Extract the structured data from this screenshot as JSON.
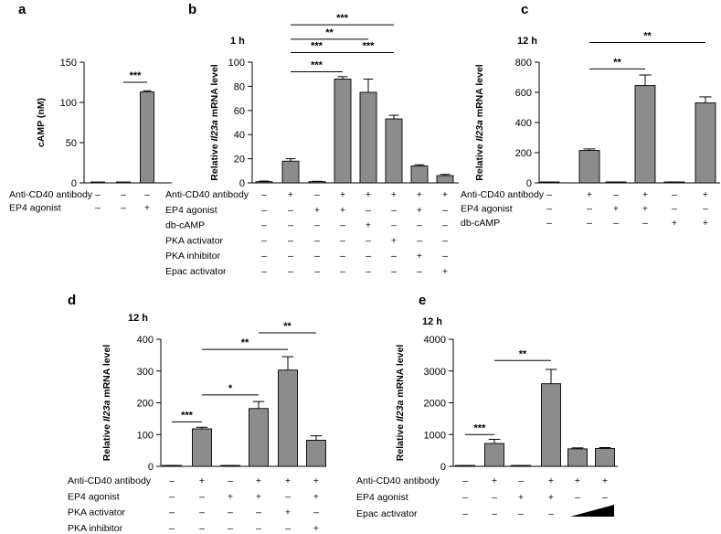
{
  "chart_data": [
    {
      "panel": "a",
      "type": "bar",
      "time_label": "",
      "ylabel": "cAMP (nM)",
      "ylim": [
        0,
        150
      ],
      "yticks": [
        0,
        50,
        100,
        150
      ],
      "values": [
        1,
        1,
        113
      ],
      "errors": [
        0,
        0,
        1.5
      ],
      "conditions": [
        {
          "label": "Anti-CD40 antibody",
          "signs": [
            "–",
            "–",
            "–"
          ]
        },
        {
          "label": "EP4 agonist",
          "signs": [
            "–",
            "–",
            "+"
          ]
        }
      ],
      "significance": [
        {
          "from": 1,
          "to": 2,
          "label": "***",
          "level": 125
        }
      ]
    },
    {
      "panel": "b",
      "type": "bar",
      "time_label": "1 h",
      "ylabel_prefix": "Relative ",
      "ylabel_gene": "Il23a",
      "ylabel_suffix": " mRNA level",
      "ylim": [
        0,
        100
      ],
      "yticks": [
        0,
        20,
        40,
        60,
        80,
        100
      ],
      "values": [
        1,
        18,
        1,
        86,
        75,
        53,
        14,
        6
      ],
      "errors": [
        0.5,
        2,
        0.3,
        2,
        11,
        3,
        1,
        1
      ],
      "conditions": [
        {
          "label": "Anti-CD40 antibody",
          "signs": [
            "–",
            "+",
            "–",
            "+",
            "+",
            "+",
            "+",
            "+"
          ]
        },
        {
          "label": "EP4 agonist",
          "signs": [
            "–",
            "–",
            "+",
            "+",
            "–",
            "–",
            "+",
            "–"
          ]
        },
        {
          "label": "db-cAMP",
          "signs": [
            "–",
            "–",
            "–",
            "–",
            "+",
            "–",
            "–",
            "–"
          ]
        },
        {
          "label": "PKA activator",
          "signs": [
            "–",
            "–",
            "–",
            "–",
            "–",
            "+",
            "–",
            "–"
          ]
        },
        {
          "label": "PKA inhibitor",
          "signs": [
            "–",
            "–",
            "–",
            "–",
            "–",
            "–",
            "+",
            "–"
          ]
        },
        {
          "label": "Epac activator",
          "signs": [
            "–",
            "–",
            "–",
            "–",
            "–",
            "–",
            "–",
            "+"
          ]
        }
      ],
      "significance": [
        {
          "from": 1,
          "to": 3,
          "label": "***",
          "level": 92
        },
        {
          "from": 1,
          "to": 3,
          "label": "***",
          "level": 108
        },
        {
          "from": 3,
          "to": 5,
          "label": "***",
          "level": 108
        },
        {
          "from": 1,
          "to": 4,
          "label": "**",
          "level": 119
        },
        {
          "from": 1,
          "to": 5,
          "label": "***",
          "level": 131
        }
      ]
    },
    {
      "panel": "c",
      "type": "bar",
      "time_label": "12 h",
      "ylabel_prefix": "Relative ",
      "ylabel_gene": "Il23a",
      "ylabel_suffix": " mRNA level",
      "ylim": [
        0,
        800
      ],
      "yticks": [
        0,
        200,
        400,
        600,
        800
      ],
      "values": [
        3,
        215,
        5,
        645,
        5,
        530
      ],
      "errors": [
        1,
        10,
        1,
        70,
        1,
        40
      ],
      "conditions": [
        {
          "label": "Anti-CD40 antibody",
          "signs": [
            "–",
            "+",
            "–",
            "+",
            "–",
            "+"
          ]
        },
        {
          "label": "EP4 agonist",
          "signs": [
            "–",
            "–",
            "+",
            "+",
            "–",
            "–"
          ]
        },
        {
          "label": "db-cAMP",
          "signs": [
            "–",
            "–",
            "–",
            "–",
            "+",
            "+"
          ]
        }
      ],
      "significance": [
        {
          "from": 1,
          "to": 3,
          "label": "**",
          "level": 755
        },
        {
          "from": 1,
          "to": 5,
          "label": "**",
          "level": 930
        }
      ]
    },
    {
      "panel": "d",
      "type": "bar",
      "time_label": "12 h",
      "ylabel_prefix": "Relative ",
      "ylabel_gene": "Il23a",
      "ylabel_suffix": " mRNA level",
      "ylim": [
        0,
        400
      ],
      "yticks": [
        0,
        100,
        200,
        300,
        400
      ],
      "values": [
        2,
        118,
        2,
        182,
        303,
        82
      ],
      "errors": [
        0.5,
        5,
        0.5,
        22,
        42,
        14
      ],
      "conditions": [
        {
          "label": "Anti-CD40 antibody",
          "signs": [
            "–",
            "+",
            "–",
            "+",
            "+",
            "+"
          ]
        },
        {
          "label": "EP4 agonist",
          "signs": [
            "–",
            "–",
            "+",
            "+",
            "–",
            "+"
          ]
        },
        {
          "label": "PKA activator",
          "signs": [
            "–",
            "–",
            "–",
            "–",
            "+",
            "–"
          ]
        },
        {
          "label": "PKA inhibitor",
          "signs": [
            "–",
            "–",
            "–",
            "–",
            "–",
            "+"
          ]
        }
      ],
      "significance": [
        {
          "from": 0,
          "to": 1,
          "label": "***",
          "level": 140
        },
        {
          "from": 1,
          "to": 3,
          "label": "*",
          "level": 225
        },
        {
          "from": 1,
          "to": 4,
          "label": "**",
          "level": 368
        },
        {
          "from": 3,
          "to": 5,
          "label": "**",
          "level": 420
        }
      ]
    },
    {
      "panel": "e",
      "type": "bar",
      "time_label": "12 h",
      "ylabel_prefix": "Relative ",
      "ylabel_gene": "Il23a",
      "ylabel_suffix": " mRNA level",
      "ylim": [
        0,
        4000
      ],
      "yticks": [
        0,
        1000,
        2000,
        3000,
        4000
      ],
      "values": [
        10,
        720,
        10,
        2600,
        550,
        560
      ],
      "errors": [
        3,
        130,
        3,
        450,
        30,
        30
      ],
      "conditions": [
        {
          "label": "Anti-CD40 antibody",
          "signs": [
            "–",
            "+",
            "–",
            "+",
            "+",
            "+"
          ]
        },
        {
          "label": "EP4 agonist",
          "signs": [
            "–",
            "–",
            "+",
            "+",
            "–",
            "–"
          ]
        },
        {
          "label": "Epac activator",
          "signs": [
            "–",
            "–",
            "–",
            "–",
            "ramp",
            "ramp"
          ]
        }
      ],
      "significance": [
        {
          "from": 0,
          "to": 1,
          "label": "***",
          "level": 1000
        },
        {
          "from": 1,
          "to": 3,
          "label": "**",
          "level": 3330
        }
      ]
    }
  ]
}
